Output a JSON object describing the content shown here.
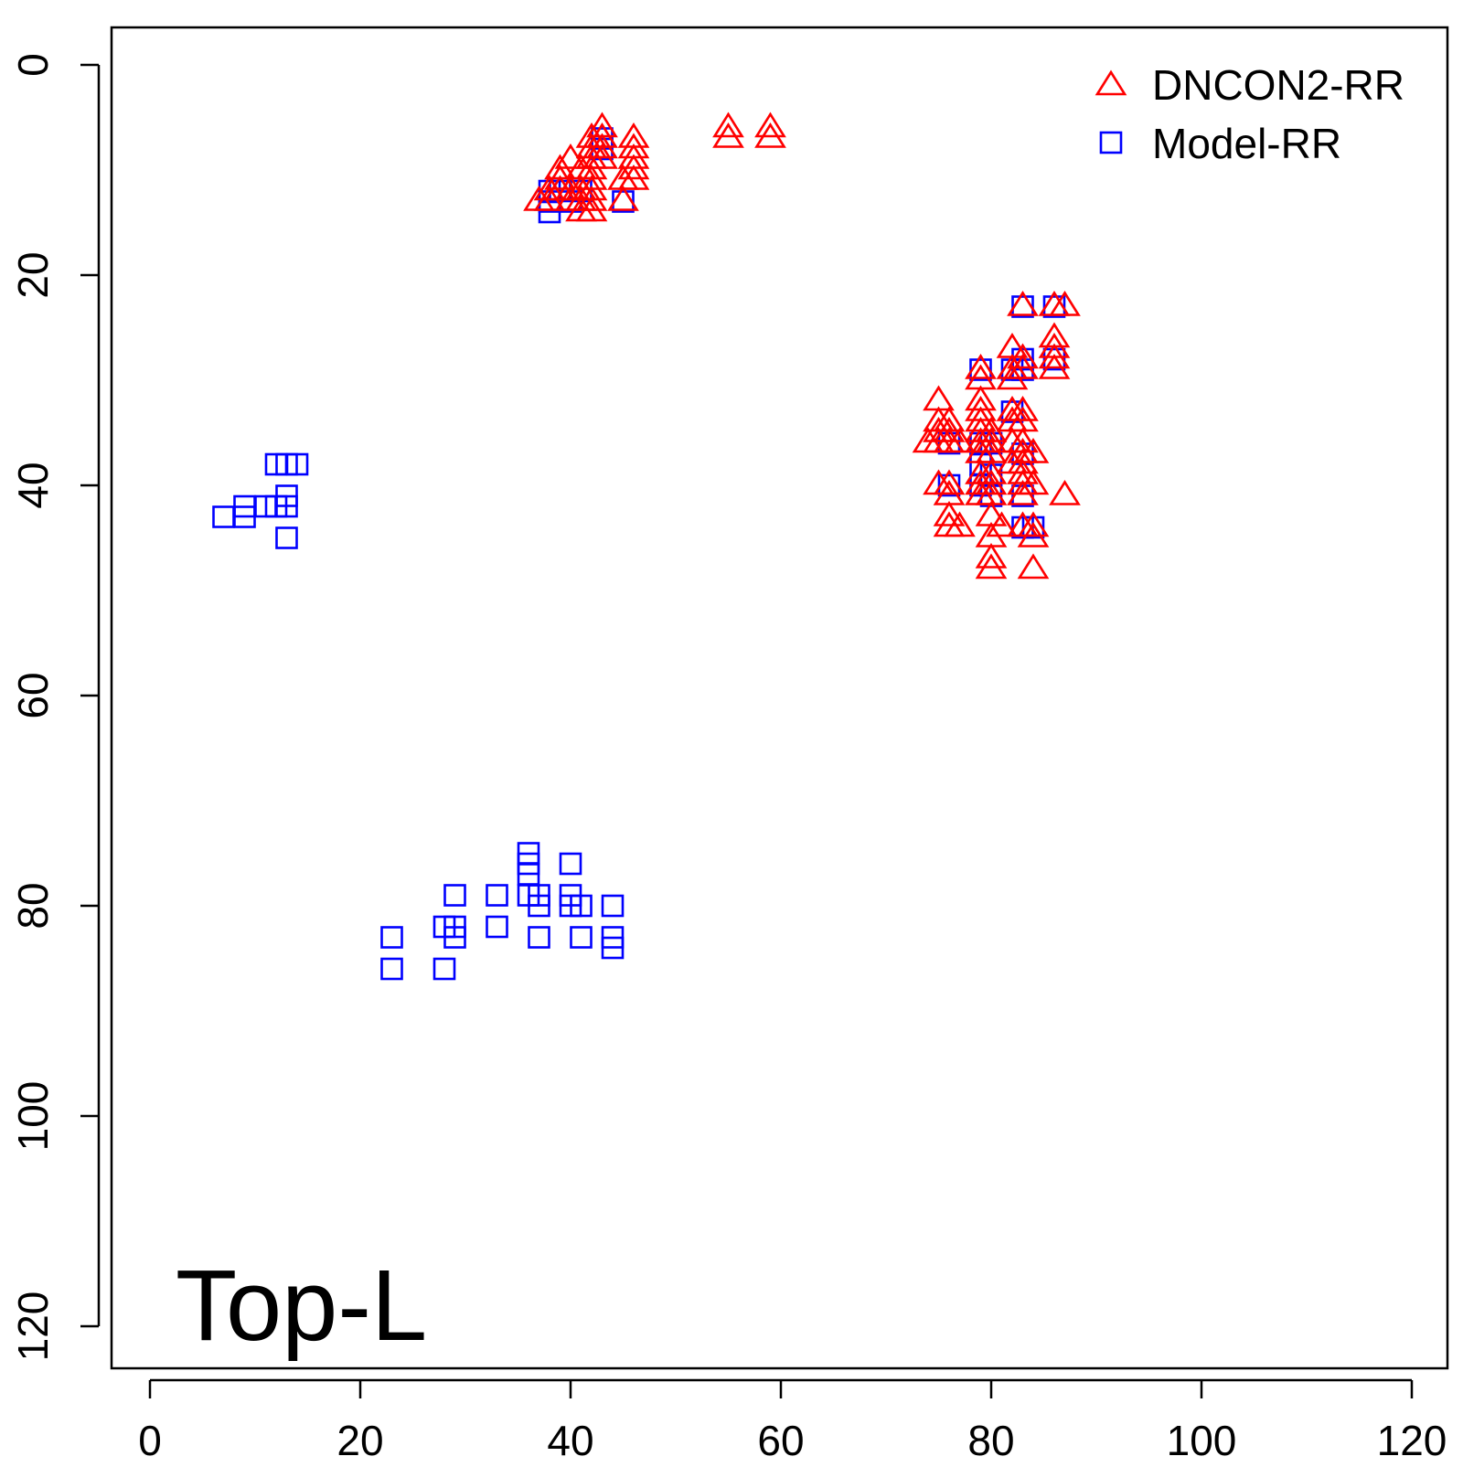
{
  "chart_data": {
    "type": "scatter",
    "title": "",
    "xlabel": "",
    "ylabel": "",
    "annotation": "Top-L",
    "xlim": [
      -1.9,
      123.6
    ],
    "ylim": [
      123.6,
      -1.9
    ],
    "y_reversed": true,
    "x_ticks": [
      0,
      20,
      40,
      60,
      80,
      100,
      120
    ],
    "y_ticks": [
      0,
      20,
      40,
      60,
      80,
      100,
      120
    ],
    "x_tick_labels": [
      "0",
      "20",
      "40",
      "60",
      "80",
      "100",
      "120"
    ],
    "y_tick_labels": [
      "0",
      "20",
      "40",
      "60",
      "80",
      "100",
      "120"
    ],
    "grid": false,
    "legend_position": "top-right",
    "series": [
      {
        "name": "DNCON2-RR",
        "marker": "triangle-open",
        "color": "#ff0000",
        "points": [
          [
            43,
            6
          ],
          [
            43,
            7
          ],
          [
            42,
            7
          ],
          [
            46,
            7
          ],
          [
            46,
            8
          ],
          [
            42,
            8
          ],
          [
            43,
            8
          ],
          [
            46,
            9
          ],
          [
            40,
            9
          ],
          [
            42,
            9
          ],
          [
            43,
            9
          ],
          [
            46,
            10
          ],
          [
            39,
            10
          ],
          [
            41,
            10
          ],
          [
            42,
            10
          ],
          [
            45,
            11
          ],
          [
            46,
            11
          ],
          [
            39,
            11
          ],
          [
            42,
            11
          ],
          [
            38,
            12
          ],
          [
            39,
            12
          ],
          [
            40,
            12
          ],
          [
            41,
            12
          ],
          [
            42,
            12
          ],
          [
            37,
            13
          ],
          [
            38,
            13
          ],
          [
            40,
            13
          ],
          [
            41,
            13
          ],
          [
            42,
            13
          ],
          [
            45,
            13
          ],
          [
            41,
            14
          ],
          [
            42,
            14
          ],
          [
            55,
            6
          ],
          [
            55,
            7
          ],
          [
            59,
            6
          ],
          [
            59,
            7
          ],
          [
            83,
            23
          ],
          [
            86,
            23
          ],
          [
            87,
            23
          ],
          [
            86,
            26
          ],
          [
            82,
            27
          ],
          [
            86,
            27
          ],
          [
            83,
            28
          ],
          [
            86,
            28
          ],
          [
            79,
            29
          ],
          [
            82,
            29
          ],
          [
            83,
            29
          ],
          [
            86,
            29
          ],
          [
            79,
            30
          ],
          [
            82,
            30
          ],
          [
            79,
            32
          ],
          [
            75,
            32
          ],
          [
            79,
            33
          ],
          [
            82,
            33
          ],
          [
            83,
            33
          ],
          [
            75,
            34
          ],
          [
            76,
            34
          ],
          [
            79,
            34
          ],
          [
            82,
            34
          ],
          [
            83,
            34
          ],
          [
            75,
            35
          ],
          [
            76,
            35
          ],
          [
            79,
            35
          ],
          [
            80,
            35
          ],
          [
            74,
            36
          ],
          [
            75,
            36
          ],
          [
            76,
            36
          ],
          [
            77,
            36
          ],
          [
            79,
            36
          ],
          [
            80,
            36
          ],
          [
            82,
            36
          ],
          [
            83,
            36
          ],
          [
            79,
            37
          ],
          [
            80,
            37
          ],
          [
            83,
            37
          ],
          [
            84,
            37
          ],
          [
            82,
            38
          ],
          [
            83,
            38
          ],
          [
            79,
            39
          ],
          [
            80,
            39
          ],
          [
            83,
            39
          ],
          [
            76,
            40
          ],
          [
            79,
            40
          ],
          [
            80,
            40
          ],
          [
            75,
            40
          ],
          [
            83,
            40
          ],
          [
            84,
            40
          ],
          [
            76,
            41
          ],
          [
            79,
            41
          ],
          [
            80,
            41
          ],
          [
            83,
            41
          ],
          [
            87,
            41
          ],
          [
            76,
            43
          ],
          [
            80,
            43
          ],
          [
            77,
            44
          ],
          [
            81,
            44
          ],
          [
            83,
            44
          ],
          [
            84,
            44
          ],
          [
            76,
            44
          ],
          [
            80,
            45
          ],
          [
            84,
            45
          ],
          [
            80,
            47
          ],
          [
            80,
            48
          ],
          [
            84,
            48
          ]
        ]
      },
      {
        "name": "Model-RR",
        "marker": "square-open",
        "color": "#0000ff",
        "points": [
          [
            43,
            7
          ],
          [
            43,
            8
          ],
          [
            38,
            12
          ],
          [
            39,
            12
          ],
          [
            41,
            12
          ],
          [
            38,
            13
          ],
          [
            40,
            13
          ],
          [
            45,
            13
          ],
          [
            38,
            14
          ],
          [
            83,
            23
          ],
          [
            86,
            23
          ],
          [
            83,
            28
          ],
          [
            86,
            28
          ],
          [
            79,
            29
          ],
          [
            82,
            29
          ],
          [
            83,
            29
          ],
          [
            82,
            33
          ],
          [
            76,
            36
          ],
          [
            79,
            36
          ],
          [
            80,
            36
          ],
          [
            83,
            37
          ],
          [
            79,
            38
          ],
          [
            80,
            39
          ],
          [
            76,
            40
          ],
          [
            79,
            40
          ],
          [
            80,
            41
          ],
          [
            83,
            41
          ],
          [
            83,
            44
          ],
          [
            84,
            44
          ],
          [
            12,
            38
          ],
          [
            13,
            38
          ],
          [
            14,
            38
          ],
          [
            13,
            41
          ],
          [
            11,
            42
          ],
          [
            12,
            42
          ],
          [
            13,
            42
          ],
          [
            9,
            42
          ],
          [
            7,
            43
          ],
          [
            9,
            43
          ],
          [
            13,
            45
          ],
          [
            36,
            75
          ],
          [
            36,
            76
          ],
          [
            36,
            77
          ],
          [
            40,
            76
          ],
          [
            29,
            79
          ],
          [
            33,
            79
          ],
          [
            36,
            79
          ],
          [
            37,
            79
          ],
          [
            40,
            79
          ],
          [
            37,
            80
          ],
          [
            40,
            80
          ],
          [
            41,
            80
          ],
          [
            44,
            80
          ],
          [
            28,
            82
          ],
          [
            29,
            82
          ],
          [
            33,
            82
          ],
          [
            23,
            83
          ],
          [
            29,
            83
          ],
          [
            37,
            83
          ],
          [
            41,
            83
          ],
          [
            44,
            83
          ],
          [
            44,
            84
          ],
          [
            23,
            86
          ],
          [
            28,
            86
          ]
        ]
      }
    ]
  }
}
